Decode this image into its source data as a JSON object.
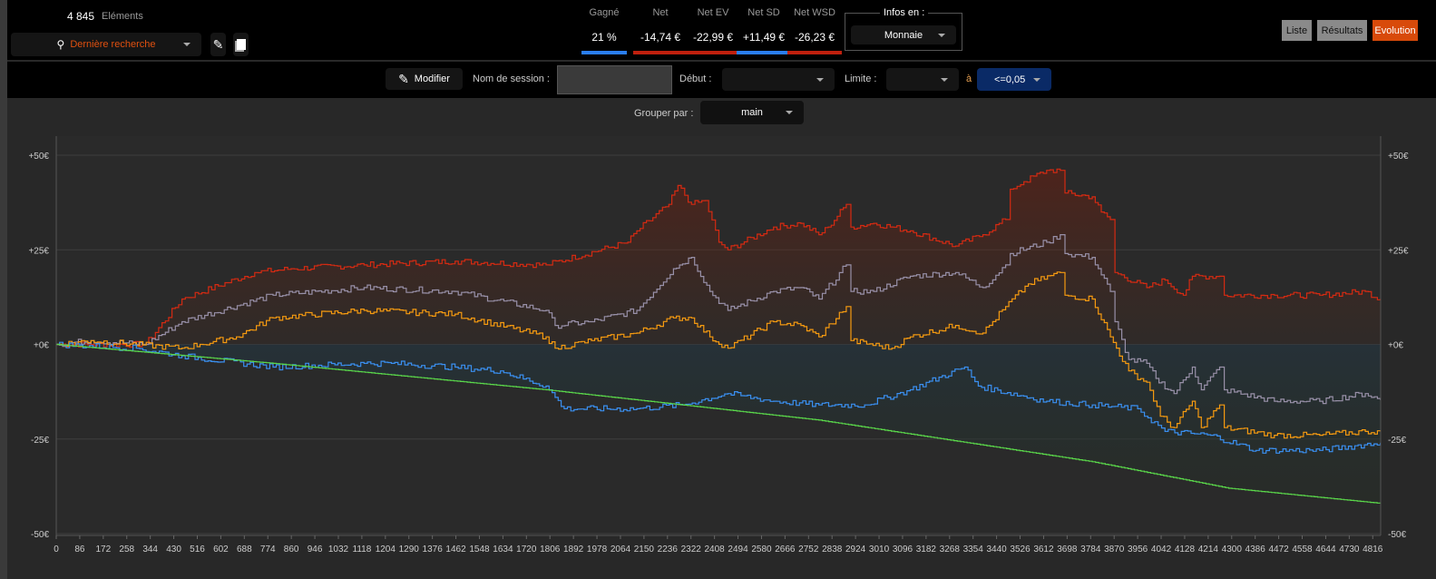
{
  "header": {
    "count": "4 845",
    "count_label": "Eléments",
    "search_label": "Dernière recherche"
  },
  "stats": [
    {
      "label": "Gagné",
      "value": "21 %",
      "color": "#2a7ef0"
    },
    {
      "label": "Net",
      "value": "-14,74 €",
      "color": "#c0200e"
    },
    {
      "label": "Net EV",
      "value": "-22,99 €",
      "color": "#c0200e"
    },
    {
      "label": "Net SD",
      "value": "+11,49 €",
      "color": "#2a7ef0"
    },
    {
      "label": "Net WSD",
      "value": "-26,23 €",
      "color": "#c0200e"
    }
  ],
  "infos": {
    "legend": "Infos en :",
    "value": "Monnaie"
  },
  "views": {
    "list": "Liste",
    "results": "Résultats",
    "evolution": "Evolution",
    "active_color": "#d84a0a"
  },
  "filters": {
    "modify": "Modifier",
    "session_label": "Nom de session :",
    "session_value": "",
    "start_label": "Début :",
    "start_value": "",
    "limit_label": "Limite :",
    "limit_value": "",
    "to_label": "à",
    "to_value": "<=0,05",
    "group_label": "Grouper par :",
    "group_value": "main"
  },
  "chart_data": {
    "type": "line",
    "xlabel": "",
    "ylabel": "",
    "xlim": [
      0,
      4845
    ],
    "ylim": [
      -50,
      50
    ],
    "yticks": [
      "+50€",
      "+25€",
      "+0€",
      "-25€",
      "-50€"
    ],
    "ytick_values": [
      50,
      25,
      0,
      -25,
      -50
    ],
    "xtick_step": 86,
    "xtick_max": 4816,
    "grid": true,
    "series": [
      {
        "name": "Net SD",
        "color": "#d42a12",
        "points": [
          [
            0,
            0
          ],
          [
            127,
            0
          ],
          [
            326,
            0
          ],
          [
            460,
            12
          ],
          [
            726,
            19
          ],
          [
            859,
            20
          ],
          [
            1126,
            21
          ],
          [
            1459,
            22
          ],
          [
            1792,
            21
          ],
          [
            2091,
            27
          ],
          [
            2124,
            30
          ],
          [
            2241,
            37
          ],
          [
            2274,
            42
          ],
          [
            2324,
            37
          ],
          [
            2374,
            38
          ],
          [
            2424,
            27
          ],
          [
            2457,
            25
          ],
          [
            2624,
            31
          ],
          [
            2724,
            32
          ],
          [
            2790,
            29
          ],
          [
            2824,
            31
          ],
          [
            2890,
            37
          ],
          [
            2907,
            31
          ],
          [
            2990,
            32
          ],
          [
            3124,
            30
          ],
          [
            3290,
            26
          ],
          [
            3390,
            29
          ],
          [
            3473,
            33
          ],
          [
            3490,
            41
          ],
          [
            3540,
            43
          ],
          [
            3623,
            46
          ],
          [
            3673,
            46
          ],
          [
            3690,
            40
          ],
          [
            3790,
            39
          ],
          [
            3823,
            35
          ],
          [
            3856,
            33
          ],
          [
            3873,
            19
          ],
          [
            3989,
            15
          ],
          [
            4056,
            17
          ],
          [
            4123,
            13
          ],
          [
            4156,
            18
          ],
          [
            4256,
            18
          ],
          [
            4273,
            13
          ],
          [
            4456,
            13
          ],
          [
            4622,
            13
          ],
          [
            4789,
            14
          ],
          [
            4844,
            12
          ]
        ]
      },
      {
        "name": "Net",
        "color": "#9890a8",
        "points": [
          [
            0,
            0
          ],
          [
            127,
            1
          ],
          [
            326,
            0
          ],
          [
            460,
            6
          ],
          [
            793,
            13
          ],
          [
            1126,
            15
          ],
          [
            1459,
            14
          ],
          [
            1792,
            9
          ],
          [
            1825,
            5
          ],
          [
            1958,
            6
          ],
          [
            2124,
            9
          ],
          [
            2258,
            20
          ],
          [
            2324,
            23
          ],
          [
            2391,
            14
          ],
          [
            2457,
            9
          ],
          [
            2624,
            14
          ],
          [
            2724,
            15
          ],
          [
            2790,
            12
          ],
          [
            2890,
            21
          ],
          [
            2907,
            14
          ],
          [
            2990,
            14
          ],
          [
            3124,
            18
          ],
          [
            3290,
            19
          ],
          [
            3390,
            15
          ],
          [
            3473,
            21
          ],
          [
            3490,
            24
          ],
          [
            3623,
            27
          ],
          [
            3673,
            29
          ],
          [
            3690,
            24
          ],
          [
            3790,
            23
          ],
          [
            3856,
            14
          ],
          [
            3873,
            6
          ],
          [
            3923,
            -4
          ],
          [
            3989,
            -5
          ],
          [
            4023,
            -9
          ],
          [
            4089,
            -13
          ],
          [
            4156,
            -6
          ],
          [
            4189,
            -12
          ],
          [
            4256,
            -6
          ],
          [
            4273,
            -12
          ],
          [
            4456,
            -15
          ],
          [
            4622,
            -15
          ],
          [
            4789,
            -13
          ],
          [
            4844,
            -14.7
          ]
        ]
      },
      {
        "name": "Net EV",
        "color": "#f59a10",
        "points": [
          [
            0,
            0
          ],
          [
            127,
            1
          ],
          [
            460,
            -1
          ],
          [
            526,
            0
          ],
          [
            659,
            2
          ],
          [
            793,
            7
          ],
          [
            1126,
            9
          ],
          [
            1459,
            8
          ],
          [
            1792,
            2
          ],
          [
            1825,
            -1
          ],
          [
            1958,
            1
          ],
          [
            2124,
            3
          ],
          [
            2258,
            7
          ],
          [
            2324,
            7
          ],
          [
            2391,
            2
          ],
          [
            2457,
            -1
          ],
          [
            2624,
            6
          ],
          [
            2724,
            5
          ],
          [
            2790,
            2
          ],
          [
            2890,
            10
          ],
          [
            2907,
            1
          ],
          [
            3057,
            -1
          ],
          [
            3124,
            2
          ],
          [
            3290,
            5
          ],
          [
            3390,
            3
          ],
          [
            3473,
            10
          ],
          [
            3556,
            16
          ],
          [
            3673,
            19
          ],
          [
            3690,
            13
          ],
          [
            3790,
            12
          ],
          [
            3856,
            2
          ],
          [
            3923,
            -7
          ],
          [
            3989,
            -10
          ],
          [
            4039,
            -19
          ],
          [
            4089,
            -22
          ],
          [
            4156,
            -15
          ],
          [
            4189,
            -22
          ],
          [
            4256,
            -16
          ],
          [
            4273,
            -22
          ],
          [
            4456,
            -24
          ],
          [
            4622,
            -24
          ],
          [
            4789,
            -23
          ],
          [
            4844,
            -23
          ]
        ]
      },
      {
        "name": "Net WSD",
        "color": "#3a8ff0",
        "points": [
          [
            0,
            0
          ],
          [
            293,
            -1
          ],
          [
            460,
            -3
          ],
          [
            793,
            -6
          ],
          [
            1126,
            -5
          ],
          [
            1226,
            -5
          ],
          [
            1459,
            -6
          ],
          [
            1625,
            -7
          ],
          [
            1792,
            -11
          ],
          [
            1858,
            -17
          ],
          [
            2124,
            -17
          ],
          [
            2291,
            -16
          ],
          [
            2457,
            -13
          ],
          [
            2624,
            -15
          ],
          [
            2790,
            -16
          ],
          [
            2957,
            -16
          ],
          [
            3124,
            -12
          ],
          [
            3323,
            -6
          ],
          [
            3373,
            -11
          ],
          [
            3623,
            -15
          ],
          [
            3790,
            -16
          ],
          [
            3956,
            -17
          ],
          [
            4056,
            -23
          ],
          [
            4223,
            -24
          ],
          [
            4389,
            -28
          ],
          [
            4622,
            -28
          ],
          [
            4844,
            -26
          ]
        ]
      },
      {
        "name": "series-5",
        "color": "#5ad84a",
        "points": [
          [
            0,
            0
          ],
          [
            793,
            -5
          ],
          [
            1792,
            -12
          ],
          [
            2790,
            -20
          ],
          [
            3790,
            -31
          ],
          [
            4289,
            -38
          ],
          [
            4844,
            -42
          ]
        ]
      }
    ]
  }
}
